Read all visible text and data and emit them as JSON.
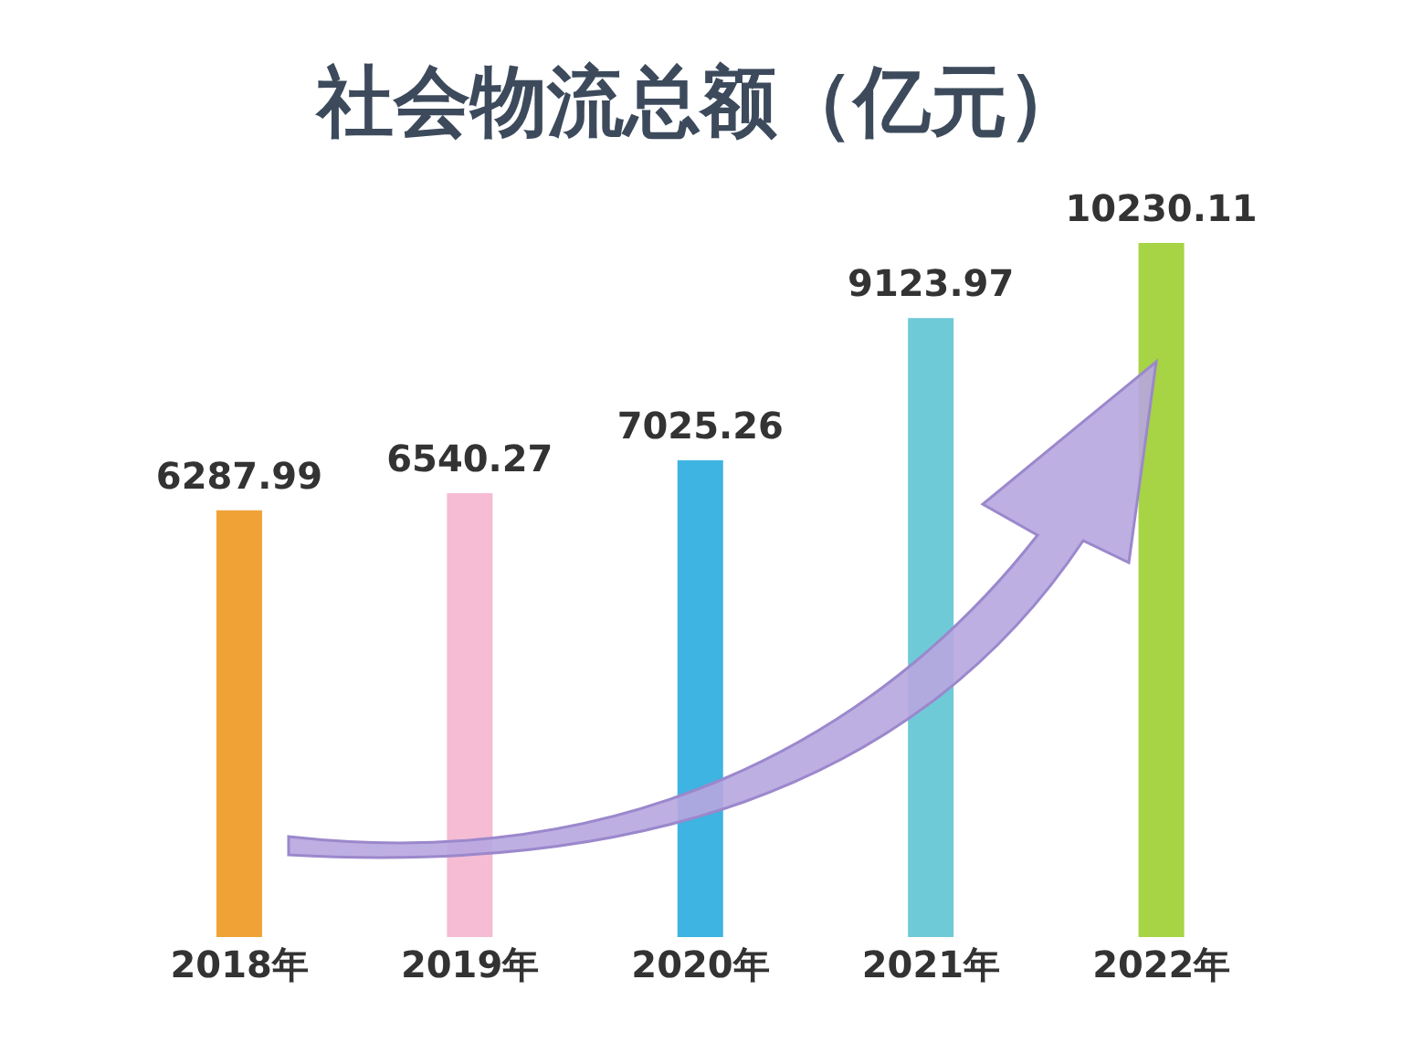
{
  "chart_data": {
    "type": "bar",
    "title": "社会物流总额（亿元）",
    "categories": [
      "2018年",
      "2019年",
      "2020年",
      "2021年",
      "2022年"
    ],
    "values": [
      6287.99,
      6540.27,
      7025.26,
      9123.97,
      10230.11
    ],
    "colors": [
      "#f0a236",
      "#f5bcd4",
      "#3db4e2",
      "#6fcad8",
      "#a6d444"
    ],
    "data_labels": true
  }
}
